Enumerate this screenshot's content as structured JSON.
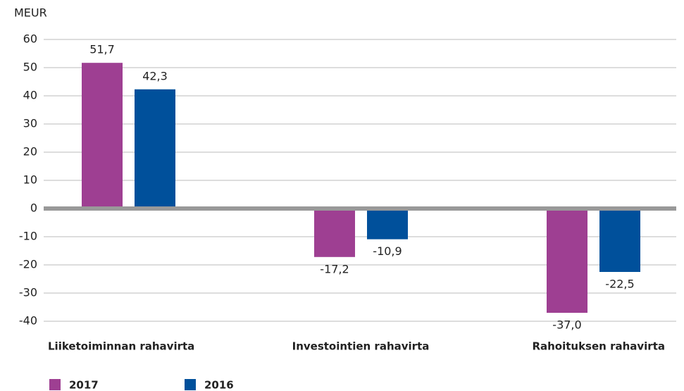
{
  "chart_data": {
    "type": "bar",
    "y_axis_label": "MEUR",
    "categories": [
      "Liiketoiminnan rahavirta",
      "Investointien rahavirta",
      "Rahoituksen rahavirta"
    ],
    "series": [
      {
        "name": "2017",
        "color": "#9e3f92",
        "values": [
          51.7,
          -17.2,
          -37.0
        ],
        "value_labels": [
          "51,7",
          "-17,2",
          "-37,0"
        ]
      },
      {
        "name": "2016",
        "color": "#00509b",
        "values": [
          42.3,
          -10.9,
          -22.5
        ],
        "value_labels": [
          "42,3",
          "-10,9",
          "-22,5"
        ]
      }
    ],
    "ylim": [
      -40,
      60
    ],
    "yticks": [
      -40,
      -30,
      -20,
      -10,
      0,
      10,
      20,
      30,
      40,
      50,
      60
    ],
    "grid": true
  }
}
